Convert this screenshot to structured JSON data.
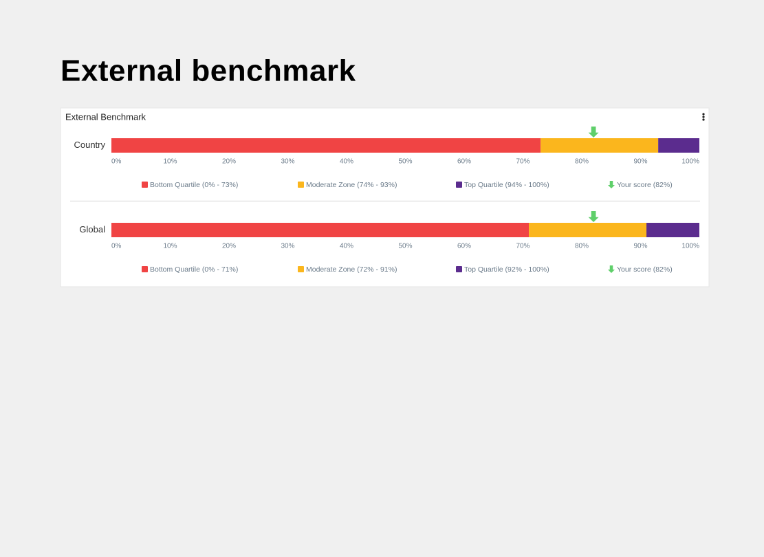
{
  "header": {
    "title": "External benchmark"
  },
  "card": {
    "title": "External Benchmark"
  },
  "chart_data": [
    {
      "type": "stacked-bar-horizontal",
      "categories": [
        "Country"
      ],
      "xlim": [
        0,
        100
      ],
      "xticks": [
        {
          "value": 0,
          "label": "0%"
        },
        {
          "value": 10,
          "label": "10%"
        },
        {
          "value": 20,
          "label": "20%"
        },
        {
          "value": 30,
          "label": "30%"
        },
        {
          "value": 40,
          "label": "40%"
        },
        {
          "value": 50,
          "label": "50%"
        },
        {
          "value": 60,
          "label": "60%"
        },
        {
          "value": 70,
          "label": "70%"
        },
        {
          "value": 80,
          "label": "80%"
        },
        {
          "value": 90,
          "label": "90%"
        },
        {
          "value": 100,
          "label": "100%"
        }
      ],
      "series": [
        {
          "name": "Bottom Quartile (0% - 73%)",
          "color": "#f04444",
          "values": [
            73
          ]
        },
        {
          "name": "Moderate Zone (74% - 93%)",
          "color": "#fbb61d",
          "values": [
            20
          ]
        },
        {
          "name": "Top Quartile (94% - 100%)",
          "color": "#5b2c8e",
          "values": [
            7
          ]
        }
      ],
      "marker": {
        "name": "Your score (82%)",
        "color": "#5fcf6a",
        "value": 82
      }
    },
    {
      "type": "stacked-bar-horizontal",
      "categories": [
        "Global"
      ],
      "xlim": [
        0,
        100
      ],
      "xticks": [
        {
          "value": 0,
          "label": "0%"
        },
        {
          "value": 10,
          "label": "10%"
        },
        {
          "value": 20,
          "label": "20%"
        },
        {
          "value": 30,
          "label": "30%"
        },
        {
          "value": 40,
          "label": "40%"
        },
        {
          "value": 50,
          "label": "50%"
        },
        {
          "value": 60,
          "label": "60%"
        },
        {
          "value": 70,
          "label": "70%"
        },
        {
          "value": 80,
          "label": "80%"
        },
        {
          "value": 90,
          "label": "90%"
        },
        {
          "value": 100,
          "label": "100%"
        }
      ],
      "series": [
        {
          "name": "Bottom Quartile (0% - 71%)",
          "color": "#f04444",
          "values": [
            71
          ]
        },
        {
          "name": "Moderate Zone (72% - 91%)",
          "color": "#fbb61d",
          "values": [
            20
          ]
        },
        {
          "name": "Top Quartile (92% - 100%)",
          "color": "#5b2c8e",
          "values": [
            9
          ]
        }
      ],
      "marker": {
        "name": "Your score (82%)",
        "color": "#5fcf6a",
        "value": 82
      }
    }
  ]
}
